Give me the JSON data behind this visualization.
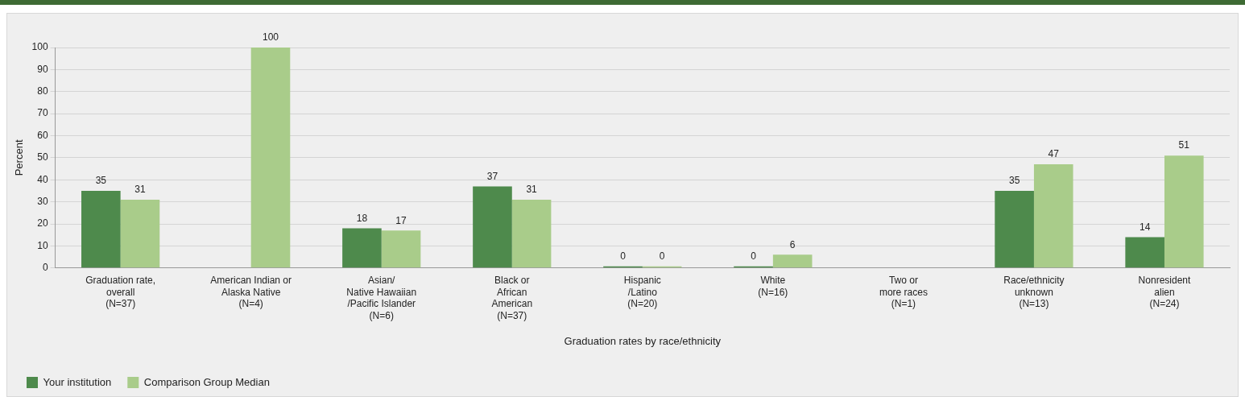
{
  "chart_data": {
    "type": "bar",
    "xlabel": "Graduation rates by race/ethnicity",
    "ylabel": "Percent",
    "categories": [
      "Graduation rate,\noverall\n(N=37)",
      "American Indian or\nAlaska Native\n(N=4)",
      "Asian/\nNative Hawaiian\n/Pacific Islander\n(N=6)",
      "Black or\nAfrican\nAmerican\n(N=37)",
      "Hispanic\n/Latino\n(N=20)",
      "White\n(N=16)",
      "Two or\nmore races\n(N=1)",
      "Race/ethnicity\nunknown\n(N=13)",
      "Nonresident\nalien\n(N=24)"
    ],
    "series": [
      {
        "name": "Your institution",
        "color": "#4e8a4c",
        "values": [
          35,
          null,
          18,
          37,
          0,
          0,
          null,
          35,
          14
        ]
      },
      {
        "name": "Comparison Group Median",
        "color": "#a9cc8a",
        "values": [
          31,
          100,
          17,
          31,
          0,
          6,
          null,
          47,
          51
        ]
      }
    ],
    "ylim": [
      0,
      100
    ],
    "yticks": [
      0,
      10,
      20,
      30,
      40,
      50,
      60,
      70,
      80,
      90,
      100
    ],
    "grid": "y",
    "legend": "bottom left",
    "data_labels": true
  }
}
